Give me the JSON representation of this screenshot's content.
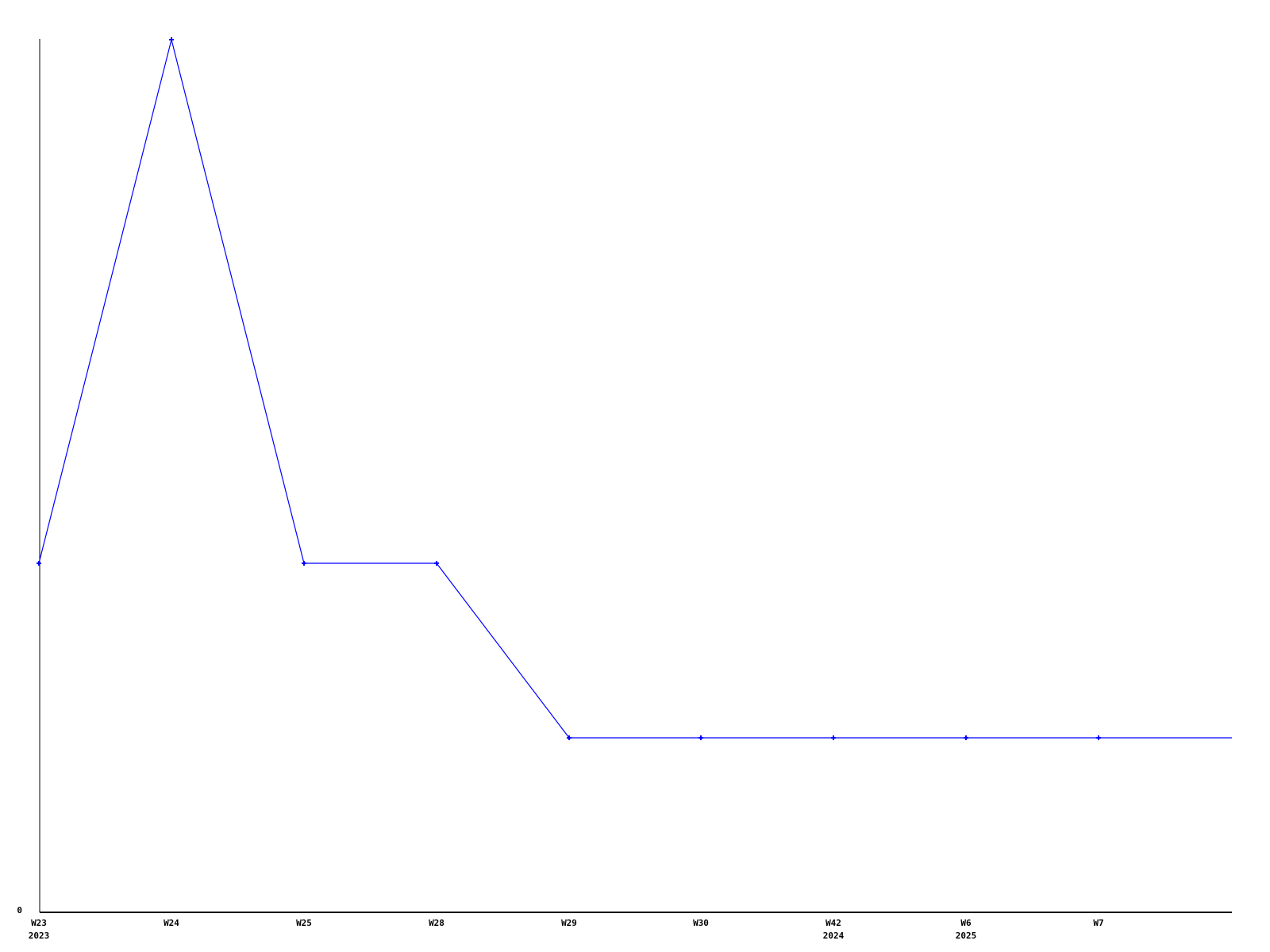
{
  "chart_data": {
    "type": "line",
    "title": "",
    "categories": [
      "W23 2023",
      "W24",
      "W25",
      "W28",
      "W29",
      "W30",
      "W42 2024",
      "W6 2025",
      "W7"
    ],
    "x_ticks": [
      {
        "week": "W23",
        "year": "2023"
      },
      {
        "week": "W24",
        "year": ""
      },
      {
        "week": "W25",
        "year": ""
      },
      {
        "week": "W28",
        "year": ""
      },
      {
        "week": "W29",
        "year": ""
      },
      {
        "week": "W30",
        "year": ""
      },
      {
        "week": "W42",
        "year": "2024"
      },
      {
        "week": "W6",
        "year": "2025"
      },
      {
        "week": "W7",
        "year": ""
      }
    ],
    "values": [
      2,
      5,
      2,
      2,
      1,
      1,
      1,
      1,
      1
    ],
    "tail_extension_value": 1,
    "y_ticks": [
      "0"
    ],
    "ylim": [
      0,
      5
    ],
    "xlabel": "",
    "ylabel": "",
    "grid": false,
    "legend": null,
    "marker": "plus",
    "colors": {
      "line": "#0000ff",
      "axis": "#000000",
      "text": "#000000",
      "background": "#ffffff"
    }
  }
}
